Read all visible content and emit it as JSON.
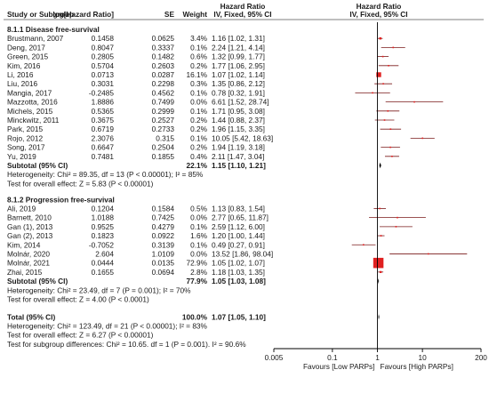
{
  "chart_data": {
    "type": "forest",
    "header_left": [
      "Study or Subgroup",
      "log[Hazard Ratio]",
      "SE",
      "Weight"
    ],
    "header_ci_top": "Hazard Ratio",
    "header_ci": "IV, Fixed, 95% CI",
    "header_plot_top": "Hazard Ratio",
    "header_plot": "IV, Fixed, 95% CI",
    "x_axis": {
      "scale": "log",
      "range": [
        0.005,
        200
      ],
      "ticks": [
        0.005,
        0.1,
        1,
        10,
        200
      ],
      "tick_labels": [
        "0.005",
        "0.1",
        "1",
        "10",
        "200"
      ],
      "favours_left": "Favours [Low PARPs]",
      "favours_right": "Favours [High PARPs]"
    },
    "groups": [
      {
        "title": "8.1.1 Disease free-survival",
        "studies": [
          {
            "name": "Brustmann, 2007",
            "loghr": "0.1458",
            "se": "0.0625",
            "weight": "3.4%",
            "ci_text": "1.16 [1.02, 1.31]",
            "hr": 1.16,
            "lo": 1.02,
            "hi": 1.31,
            "w": 3.4
          },
          {
            "name": "Deng, 2017",
            "loghr": "0.8047",
            "se": "0.3337",
            "weight": "0.1%",
            "ci_text": "2.24 [1.21, 4.14]",
            "hr": 2.24,
            "lo": 1.21,
            "hi": 4.14,
            "w": 0.1
          },
          {
            "name": "Green, 2015",
            "loghr": "0.2805",
            "se": "0.1482",
            "weight": "0.6%",
            "ci_text": "1.32 [0.99, 1.77]",
            "hr": 1.32,
            "lo": 0.99,
            "hi": 1.77,
            "w": 0.6
          },
          {
            "name": "Kim, 2016",
            "loghr": "0.5704",
            "se": "0.2603",
            "weight": "0.2%",
            "ci_text": "1.77 [1.06, 2.95]",
            "hr": 1.77,
            "lo": 1.06,
            "hi": 2.95,
            "w": 0.2
          },
          {
            "name": "Li, 2016",
            "loghr": "0.0713",
            "se": "0.0287",
            "weight": "16.1%",
            "ci_text": "1.07 [1.02, 1.14]",
            "hr": 1.07,
            "lo": 1.02,
            "hi": 1.14,
            "w": 16.1
          },
          {
            "name": "Liu, 2016",
            "loghr": "0.3031",
            "se": "0.2298",
            "weight": "0.3%",
            "ci_text": "1.35 [0.86, 2.12]",
            "hr": 1.35,
            "lo": 0.86,
            "hi": 2.12,
            "w": 0.3
          },
          {
            "name": "Mangia, 2017",
            "loghr": "-0.2485",
            "se": "0.4562",
            "weight": "0.1%",
            "ci_text": "0.78 [0.32, 1.91]",
            "hr": 0.78,
            "lo": 0.32,
            "hi": 1.91,
            "w": 0.1
          },
          {
            "name": "Mazzotta, 2016",
            "loghr": "1.8886",
            "se": "0.7499",
            "weight": "0.0%",
            "ci_text": "6.61 [1.52, 28.74]",
            "hr": 6.61,
            "lo": 1.52,
            "hi": 28.74,
            "w": 0.0
          },
          {
            "name": "Michels, 2015",
            "loghr": "0.5365",
            "se": "0.2999",
            "weight": "0.1%",
            "ci_text": "1.71 [0.95, 3.08]",
            "hr": 1.71,
            "lo": 0.95,
            "hi": 3.08,
            "w": 0.1
          },
          {
            "name": "Minckwitz, 2011",
            "loghr": "0.3675",
            "se": "0.2527",
            "weight": "0.2%",
            "ci_text": "1.44 [0.88, 2.37]",
            "hr": 1.44,
            "lo": 0.88,
            "hi": 2.37,
            "w": 0.2
          },
          {
            "name": "Park, 2015",
            "loghr": "0.6719",
            "se": "0.2733",
            "weight": "0.2%",
            "ci_text": "1.96 [1.15, 3.35]",
            "hr": 1.96,
            "lo": 1.15,
            "hi": 3.35,
            "w": 0.2
          },
          {
            "name": "Rojo, 2012",
            "loghr": "2.3076",
            "se": "0.315",
            "weight": "0.1%",
            "ci_text": "10.05 [5.42, 18.63]",
            "hr": 10.05,
            "lo": 5.42,
            "hi": 18.63,
            "w": 0.1
          },
          {
            "name": "Song, 2017",
            "loghr": "0.6647",
            "se": "0.2504",
            "weight": "0.2%",
            "ci_text": "1.94 [1.19, 3.18]",
            "hr": 1.94,
            "lo": 1.19,
            "hi": 3.18,
            "w": 0.2
          },
          {
            "name": "Yu, 2019",
            "loghr": "0.7481",
            "se": "0.1855",
            "weight": "0.4%",
            "ci_text": "2.11 [1.47, 3.04]",
            "hr": 2.11,
            "lo": 1.47,
            "hi": 3.04,
            "w": 0.4
          }
        ],
        "subtotal": {
          "label": "Subtotal (95% CI)",
          "weight": "22.1%",
          "ci_text": "1.15 [1.10, 1.21]",
          "hr": 1.15,
          "lo": 1.1,
          "hi": 1.21
        },
        "heterogeneity": "Heterogeneity: Chi² = 89.35, df = 13 (P < 0.00001); I² = 85%",
        "overall_effect": "Test for overall effect: Z = 5.83 (P < 0.00001)"
      },
      {
        "title": "8.1.2 Progression free-survival",
        "studies": [
          {
            "name": "Ali, 2019",
            "loghr": "0.1204",
            "se": "0.1584",
            "weight": "0.5%",
            "ci_text": "1.13 [0.83, 1.54]",
            "hr": 1.13,
            "lo": 0.83,
            "hi": 1.54,
            "w": 0.5
          },
          {
            "name": "Barnett, 2010",
            "loghr": "1.0188",
            "se": "0.7425",
            "weight": "0.0%",
            "ci_text": "2.77 [0.65, 11.87]",
            "hr": 2.77,
            "lo": 0.65,
            "hi": 11.87,
            "w": 0.0
          },
          {
            "name": "Gan (1), 2013",
            "loghr": "0.9525",
            "se": "0.4279",
            "weight": "0.1%",
            "ci_text": "2.59 [1.12, 6.00]",
            "hr": 2.59,
            "lo": 1.12,
            "hi": 6.0,
            "w": 0.1
          },
          {
            "name": "Gan (2), 2013",
            "loghr": "0.1823",
            "se": "0.0922",
            "weight": "1.6%",
            "ci_text": "1.20 [1.00, 1.44]",
            "hr": 1.2,
            "lo": 1.0,
            "hi": 1.44,
            "w": 1.6
          },
          {
            "name": "Kim, 2014",
            "loghr": "-0.7052",
            "se": "0.3139",
            "weight": "0.1%",
            "ci_text": "0.49 [0.27, 0.91]",
            "hr": 0.49,
            "lo": 0.27,
            "hi": 0.91,
            "w": 0.1
          },
          {
            "name": "Molnár, 2020",
            "loghr": "2.604",
            "se": "1.0109",
            "weight": "0.0%",
            "ci_text": "13.52 [1.86, 98.04]",
            "hr": 13.52,
            "lo": 1.86,
            "hi": 98.04,
            "w": 0.0
          },
          {
            "name": "Molnár, 2021",
            "loghr": "0.0444",
            "se": "0.0135",
            "weight": "72.9%",
            "ci_text": "1.05 [1.02, 1.07]",
            "hr": 1.05,
            "lo": 1.02,
            "hi": 1.07,
            "w": 72.9
          },
          {
            "name": "Zhai, 2015",
            "loghr": "0.1655",
            "se": "0.0694",
            "weight": "2.8%",
            "ci_text": "1.18 [1.03, 1.35]",
            "hr": 1.18,
            "lo": 1.03,
            "hi": 1.35,
            "w": 2.8
          }
        ],
        "subtotal": {
          "label": "Subtotal (95% CI)",
          "weight": "77.9%",
          "ci_text": "1.05 [1.03, 1.08]",
          "hr": 1.05,
          "lo": 1.03,
          "hi": 1.08
        },
        "heterogeneity": "Heterogeneity: Chi² = 23.49, df = 7 (P = 0.001); I² = 70%",
        "overall_effect": "Test for overall effect: Z = 4.00 (P < 0.0001)"
      }
    ],
    "total": {
      "label": "Total (95% CI)",
      "weight": "100.0%",
      "ci_text": "1.07 [1.05, 1.10]",
      "hr": 1.07,
      "lo": 1.05,
      "hi": 1.1
    },
    "total_heterogeneity": "Heterogeneity: Chi² = 123.49, df = 21 (P < 0.00001); I² = 83%",
    "total_overall_effect": "Test for overall effect: Z = 6.27 (P < 0.00001)",
    "subgroup_differences": "Test for subgroup differences: Chi² = 10.65. df = 1 (P = 0.001). I² = 90.6%",
    "colors": {
      "square": "#e02020",
      "ci_line": "#7a1a1a",
      "diamond": "#000000",
      "text": "#1a1a1a",
      "rule": "#555555"
    }
  }
}
